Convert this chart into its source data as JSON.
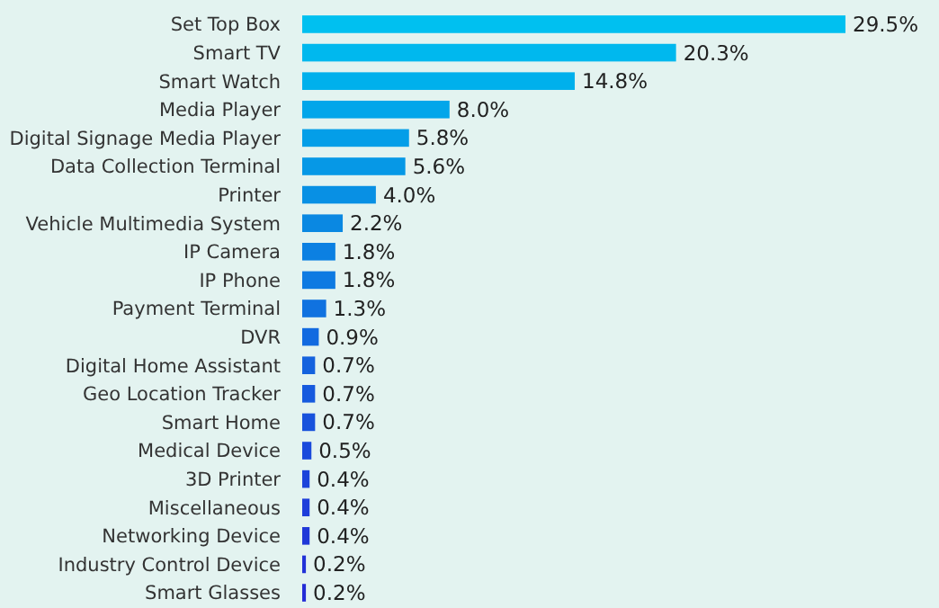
{
  "chart_data": {
    "type": "bar",
    "orientation": "horizontal",
    "data_labels": true,
    "categories": [
      "Set Top Box",
      "Smart TV",
      "Smart Watch",
      "Media Player",
      "Digital Signage Media Player",
      "Data Collection Terminal",
      "Printer",
      "Vehicle Multimedia System",
      "IP Camera",
      "IP Phone",
      "Payment Terminal",
      "DVR",
      "Digital Home Assistant",
      "Geo Location Tracker",
      "Smart Home",
      "Medical Device",
      "3D Printer",
      "Miscellaneous",
      "Networking Device",
      "Industry Control Device",
      "Smart Glasses"
    ],
    "values": [
      29.5,
      20.3,
      14.8,
      8.0,
      5.8,
      5.6,
      4.0,
      2.2,
      1.8,
      1.8,
      1.3,
      0.9,
      0.7,
      0.7,
      0.7,
      0.5,
      0.4,
      0.4,
      0.4,
      0.2,
      0.2
    ],
    "value_labels": [
      "29.5%",
      "20.3%",
      "14.8%",
      "8.0%",
      "5.8%",
      "5.6%",
      "4.0%",
      "2.2%",
      "1.8%",
      "1.8%",
      "1.3%",
      "0.9%",
      "0.7%",
      "0.7%",
      "0.7%",
      "0.5%",
      "0.4%",
      "0.4%",
      "0.4%",
      "0.2%",
      "0.2%"
    ],
    "colors": [
      "#00c0f0",
      "#00b8ee",
      "#00b0ec",
      "#02a6ea",
      "#049ee8",
      "#0698e6",
      "#0890e4",
      "#0a88e2",
      "#0c80e2",
      "#0e7ae2",
      "#1072e0",
      "#126ae0",
      "#1462de",
      "#165ade",
      "#1852dc",
      "#1a4adc",
      "#1c44da",
      "#1e3eda",
      "#2038d8",
      "#2232d8",
      "#242cd6"
    ]
  }
}
